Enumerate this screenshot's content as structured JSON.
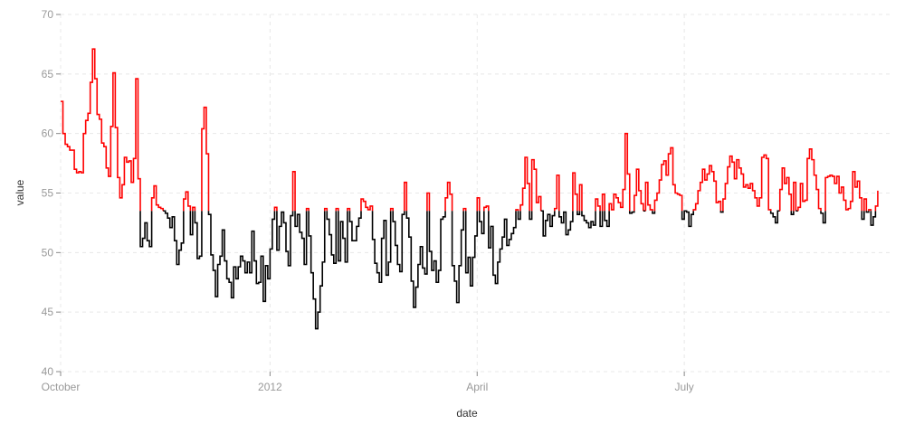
{
  "chart_data": {
    "type": "line",
    "subtype": "step",
    "xlabel": "date",
    "ylabel": "value",
    "ylim": [
      40,
      70
    ],
    "xlim": [
      "2011-10-01",
      "2012-09-30"
    ],
    "y_ticks": [
      40,
      45,
      50,
      55,
      60,
      65,
      70
    ],
    "x_ticks": [
      {
        "date": "2011-10-01",
        "label": "October"
      },
      {
        "date": "2012-01-01",
        "label": "2012"
      },
      {
        "date": "2012-04-01",
        "label": "April"
      },
      {
        "date": "2012-07-01",
        "label": "July"
      }
    ],
    "grid": true,
    "threshold": 53.5,
    "colors": {
      "above": "#ff0000",
      "below": "#000000",
      "grid": "#e8e8e8",
      "tick_text": "#999999"
    },
    "x_start": "2011-10-01",
    "x_step_days": 1,
    "values": [
      62.7,
      60,
      59.1,
      58.9,
      58.6,
      58.6,
      57,
      56.7,
      56.8,
      56.7,
      60,
      61.1,
      61.7,
      64.3,
      67.1,
      64.6,
      61.6,
      61.2,
      59.2,
      58.9,
      57.1,
      56.4,
      60.6,
      65.1,
      60.5,
      56.3,
      54.6,
      55.7,
      58,
      57.6,
      57.7,
      55.9,
      57.9,
      64.6,
      56.2,
      50.5,
      51.2,
      52.5,
      51,
      50.5,
      54.6,
      55.6,
      54,
      53.8,
      53.7,
      53.5,
      53.3,
      52.9,
      52.1,
      53,
      51,
      49,
      50.2,
      50.8,
      54.5,
      55.1,
      53.9,
      51.5,
      53.8,
      52.5,
      49.5,
      49.7,
      60.4,
      62.2,
      58.3,
      53.2,
      49.8,
      48.5,
      46.3,
      49,
      49.7,
      51.9,
      49.3,
      47.8,
      47.5,
      46.2,
      48.8,
      47.8,
      48.8,
      49.7,
      49.3,
      48.3,
      49.2,
      48.3,
      51.8,
      49.3,
      47.4,
      47.5,
      49.7,
      45.9,
      48.9,
      47.8,
      50.3,
      52.8,
      53.8,
      50.2,
      52.2,
      53.4,
      52.5,
      50.1,
      48.9,
      53.1,
      56.8,
      52.2,
      53.2,
      51.7,
      51.2,
      49,
      53.7,
      51.4,
      48.3,
      46.1,
      43.6,
      45,
      47.2,
      49.2,
      53.7,
      52.8,
      51.5,
      49.8,
      49.1,
      53.7,
      49.3,
      52.6,
      51.2,
      49.2,
      53.7,
      52.6,
      51,
      51,
      52.2,
      52.9,
      54.5,
      54.3,
      53.8,
      53.6,
      53.9,
      51.1,
      49.1,
      48.3,
      47.5,
      51.2,
      52.7,
      48.1,
      49.2,
      53.7,
      52.6,
      50.6,
      49,
      48.4,
      53.2,
      55.9,
      52.9,
      51.3,
      47.6,
      45.4,
      47.1,
      49,
      50.5,
      48.7,
      48.2,
      55,
      50.1,
      48.5,
      49.3,
      47.5,
      48.5,
      52.8,
      53,
      54.6,
      55.9,
      54.9,
      48.9,
      47.6,
      45.8,
      48.9,
      51.9,
      53.7,
      48.3,
      49.6,
      47.2,
      49.6,
      51.4,
      54.6,
      52.6,
      51.6,
      53.8,
      53.9,
      50.4,
      52.2,
      48.1,
      47.4,
      49.2,
      50.3,
      51.3,
      52.8,
      50.6,
      51.1,
      51.6,
      52.1,
      53.6,
      52.8,
      54,
      55.4,
      58,
      55.8,
      52.8,
      57.8,
      57,
      54.2,
      54.7,
      53.5,
      51.4,
      52.7,
      53.2,
      52.2,
      53.1,
      53.7,
      56.5,
      53,
      52.5,
      53.4,
      51.5,
      51.9,
      52.6,
      56.7,
      54.9,
      53.2,
      55.7,
      53.1,
      52.7,
      52.5,
      52.1,
      52.6,
      52.3,
      54.5,
      53.9,
      52.2,
      54.9,
      52.7,
      52.2,
      54.1,
      53.6,
      54.9,
      54.6,
      54.2,
      53.8,
      55.3,
      60,
      56.6,
      53.3,
      53.4,
      54.8,
      57,
      55.2,
      54.1,
      53.5,
      55.9,
      54,
      53.6,
      53.3,
      54.4,
      55,
      56.1,
      57.4,
      57.7,
      56.5,
      58.3,
      58.8,
      55.7,
      55,
      54.9,
      54.8,
      52.8,
      53.5,
      53.4,
      52.2,
      53.2,
      53.6,
      54.1,
      55.2,
      55.9,
      57,
      56.1,
      56.6,
      57.3,
      56.8,
      56,
      54.2,
      54.3,
      53.4,
      54.5,
      55.8,
      57.2,
      58.1,
      57.6,
      56.2,
      57.8,
      57.1,
      56.6,
      55.5,
      55.7,
      55.4,
      55.8,
      55.2,
      54.6,
      53.9,
      54.6,
      58,
      58.2,
      57.9,
      53.6,
      53.3,
      53,
      52.5,
      53.5,
      55.3,
      57.1,
      55.8,
      56.3,
      54.9,
      53.2,
      55.9,
      53.5,
      53.8,
      55.8,
      54.3,
      54.4,
      57.9,
      58.7,
      57.8,
      56.5,
      55.3,
      53.7,
      53.3,
      52.5,
      56.3,
      56.4,
      56.5,
      56.4,
      55.8,
      56.4,
      55,
      55.5,
      54.4,
      53.6,
      53.7,
      54.3,
      56.8,
      55.5,
      56,
      54.6,
      52.8,
      54.5,
      53.4,
      53.6,
      52.3,
      53,
      53.9,
      55.2
    ]
  }
}
